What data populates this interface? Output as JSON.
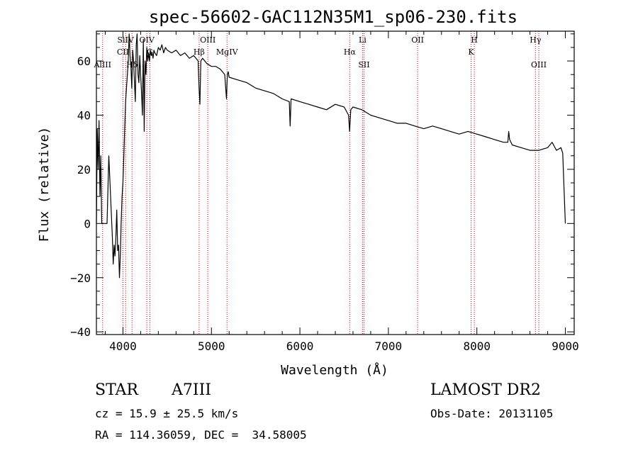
{
  "chart_data": {
    "type": "line",
    "title": "spec-56602-GAC112N35M1_sp06-230.fits",
    "xlabel": "Wavelength (Å)",
    "ylabel": "Flux (relative)",
    "xlim": [
      3700,
      9100
    ],
    "ylim": [
      -41,
      71
    ],
    "xticks": [
      4000,
      5000,
      6000,
      7000,
      8000,
      9000
    ],
    "yticks": [
      -40,
      -20,
      0,
      20,
      40,
      60
    ],
    "line_color": "#000000",
    "marker_color": "#cc0000",
    "grid": false,
    "series": [
      {
        "x": [
          3700,
          3710,
          3720,
          3730,
          3740,
          3750,
          3760,
          3770,
          3790,
          3820,
          3840,
          3860,
          3880,
          3890,
          3900,
          3910,
          3920,
          3930,
          3940,
          3950,
          3960,
          3970,
          3980,
          3990,
          4000,
          4010,
          4020,
          4030,
          4040,
          4050,
          4060,
          4070,
          4080,
          4090,
          4100,
          4110,
          4120,
          4130,
          4140,
          4150,
          4160,
          4170,
          4180,
          4190,
          4200,
          4210,
          4220,
          4230,
          4240,
          4250,
          4260,
          4270,
          4280,
          4290,
          4300,
          4310,
          4320,
          4330,
          4340,
          4350,
          4360,
          4380,
          4400,
          4420,
          4440,
          4460,
          4480,
          4500,
          4550,
          4600,
          4650,
          4700,
          4750,
          4800,
          4850,
          4860,
          4870,
          4880,
          4900,
          4950,
          5000,
          5050,
          5100,
          5150,
          5170,
          5180,
          5190,
          5200,
          5300,
          5400,
          5500,
          5600,
          5700,
          5800,
          5880,
          5890,
          5900,
          6000,
          6100,
          6200,
          6300,
          6400,
          6500,
          6550,
          6562,
          6575,
          6600,
          6700,
          6800,
          6900,
          7000,
          7100,
          7200,
          7300,
          7400,
          7500,
          7600,
          7700,
          7800,
          7900,
          8000,
          8100,
          8200,
          8300,
          8350,
          8360,
          8370,
          8400,
          8500,
          8600,
          8700,
          8800,
          8850,
          8900,
          8950,
          8960,
          8970,
          9000
        ],
        "y": [
          0,
          35,
          20,
          38,
          10,
          25,
          0,
          0,
          0,
          0,
          25,
          10,
          -5,
          -15,
          -8,
          -12,
          -5,
          5,
          -10,
          -8,
          -20,
          -12,
          0,
          10,
          15,
          25,
          35,
          45,
          50,
          55,
          60,
          70,
          62,
          58,
          50,
          64,
          60,
          52,
          45,
          66,
          70,
          55,
          52,
          62,
          55,
          48,
          40,
          68,
          34,
          60,
          55,
          65,
          60,
          63,
          60,
          64,
          62,
          63,
          61,
          64,
          63,
          62,
          65,
          64,
          66,
          63,
          65,
          64,
          63,
          64,
          62,
          63,
          61,
          62,
          60,
          50,
          44,
          60,
          61,
          59,
          58,
          58,
          57,
          55,
          46,
          55,
          56,
          54,
          53,
          52,
          50,
          49,
          48,
          46,
          45,
          36,
          46,
          45,
          44,
          43,
          42,
          44,
          43,
          40,
          34,
          42,
          43,
          42,
          40,
          39,
          38,
          37,
          37,
          36,
          35,
          36,
          35,
          34,
          33,
          34,
          33,
          32,
          31,
          30,
          30,
          34,
          31,
          29,
          28,
          27,
          27,
          28,
          30,
          27,
          28,
          27,
          26,
          0
        ]
      }
    ],
    "line_markers": [
      {
        "label": "AlIII",
        "x": 3770,
        "row": 2
      },
      {
        "label": "CII",
        "x": 4000,
        "row": 1
      },
      {
        "label": "SiIV",
        "x": 4030,
        "row": 0
      },
      {
        "label": "Hδ",
        "x": 4102,
        "row": 2
      },
      {
        "label": "OIV",
        "x": 4270,
        "row": 0
      },
      {
        "label": "G",
        "x": 4304,
        "row": 1
      },
      {
        "label": "OIII",
        "x": 4959,
        "row": 0
      },
      {
        "label": "Hβ",
        "x": 4861,
        "row": 1
      },
      {
        "label": "MgIV",
        "x": 5176,
        "row": 1
      },
      {
        "label": "Li",
        "x": 6708,
        "row": 0
      },
      {
        "label": "Hα",
        "x": 6563,
        "row": 1
      },
      {
        "label": "SII",
        "x": 6724,
        "row": 2
      },
      {
        "label": "OII",
        "x": 7330,
        "row": 0
      },
      {
        "label": "H",
        "x": 7971,
        "row": 0
      },
      {
        "label": "K",
        "x": 7934,
        "row": 1
      },
      {
        "label": "Hγ",
        "x": 8662,
        "row": 0
      },
      {
        "label": "OIII",
        "x": 8700,
        "row": 2
      }
    ]
  },
  "footer": {
    "class_label": "STAR",
    "subclass_label": "A7III",
    "survey_label": "LAMOST DR2",
    "cz_text": "cz = 15.9 ± 25.5 km/s",
    "obs_date_text": "Obs-Date: 20131105",
    "coords_text": "RA = 114.36059, DEC =  34.58005"
  }
}
